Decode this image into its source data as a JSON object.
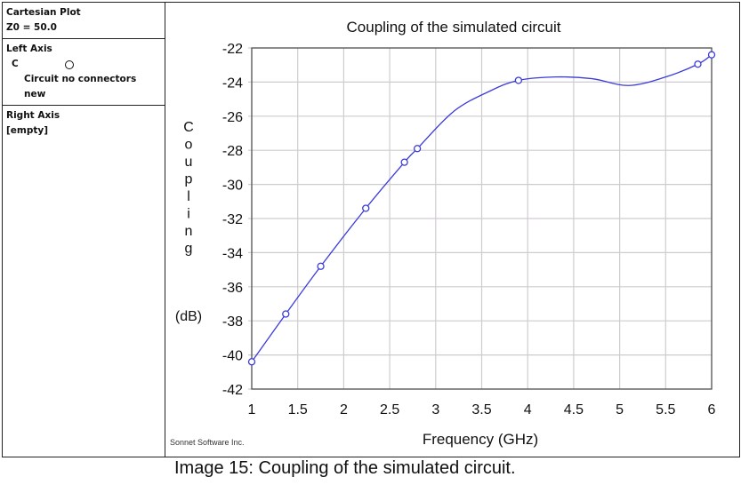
{
  "side_panel": {
    "plot_type": "Cartesian Plot",
    "z0": "Z0 = 50.0",
    "left_axis_label": "Left Axis",
    "left_axis_trace": "C",
    "left_axis_source": "Circuit no connectors new",
    "right_axis_label": "Right Axis",
    "right_axis_value": "[empty]"
  },
  "watermark": "Sonnet Software Inc.",
  "caption": "Image 15: Coupling of the simulated circuit.",
  "chart_data": {
    "type": "line",
    "title": "Coupling of the simulated circuit",
    "xlabel": "Frequency (GHz)",
    "ylabel_letters": [
      "C",
      "o",
      "u",
      "p",
      "l",
      "i",
      "n",
      "g"
    ],
    "ylabel_unit": "(dB)",
    "xlim": [
      1,
      6
    ],
    "ylim": [
      -42,
      -22
    ],
    "xticks": [
      "1",
      "1.5",
      "2",
      "2.5",
      "3",
      "3.5",
      "4",
      "4.5",
      "5",
      "5.5",
      "6"
    ],
    "yticks": [
      "-22",
      "-24",
      "-26",
      "-28",
      "-30",
      "-32",
      "-34",
      "-36",
      "-38",
      "-40",
      "-42"
    ],
    "grid": true,
    "line_color": "#3b3bdc",
    "series": [
      {
        "name": "C",
        "markers": {
          "x": [
            1,
            1.37,
            1.75,
            2.24,
            2.66,
            2.8,
            3.9,
            5.85,
            6
          ],
          "y": [
            -40.4,
            -37.6,
            -34.8,
            -31.4,
            -28.7,
            -27.9,
            -23.9,
            -22.95,
            -22.4
          ]
        },
        "curve": {
          "x": [
            1,
            1.37,
            1.75,
            2.24,
            2.66,
            2.8,
            3.2,
            3.6,
            3.9,
            4.3,
            4.7,
            5.1,
            5.5,
            5.85,
            6
          ],
          "y": [
            -40.4,
            -37.6,
            -34.8,
            -31.4,
            -28.7,
            -27.9,
            -25.7,
            -24.5,
            -23.9,
            -23.7,
            -23.8,
            -24.2,
            -23.7,
            -22.95,
            -22.4
          ]
        }
      }
    ]
  }
}
